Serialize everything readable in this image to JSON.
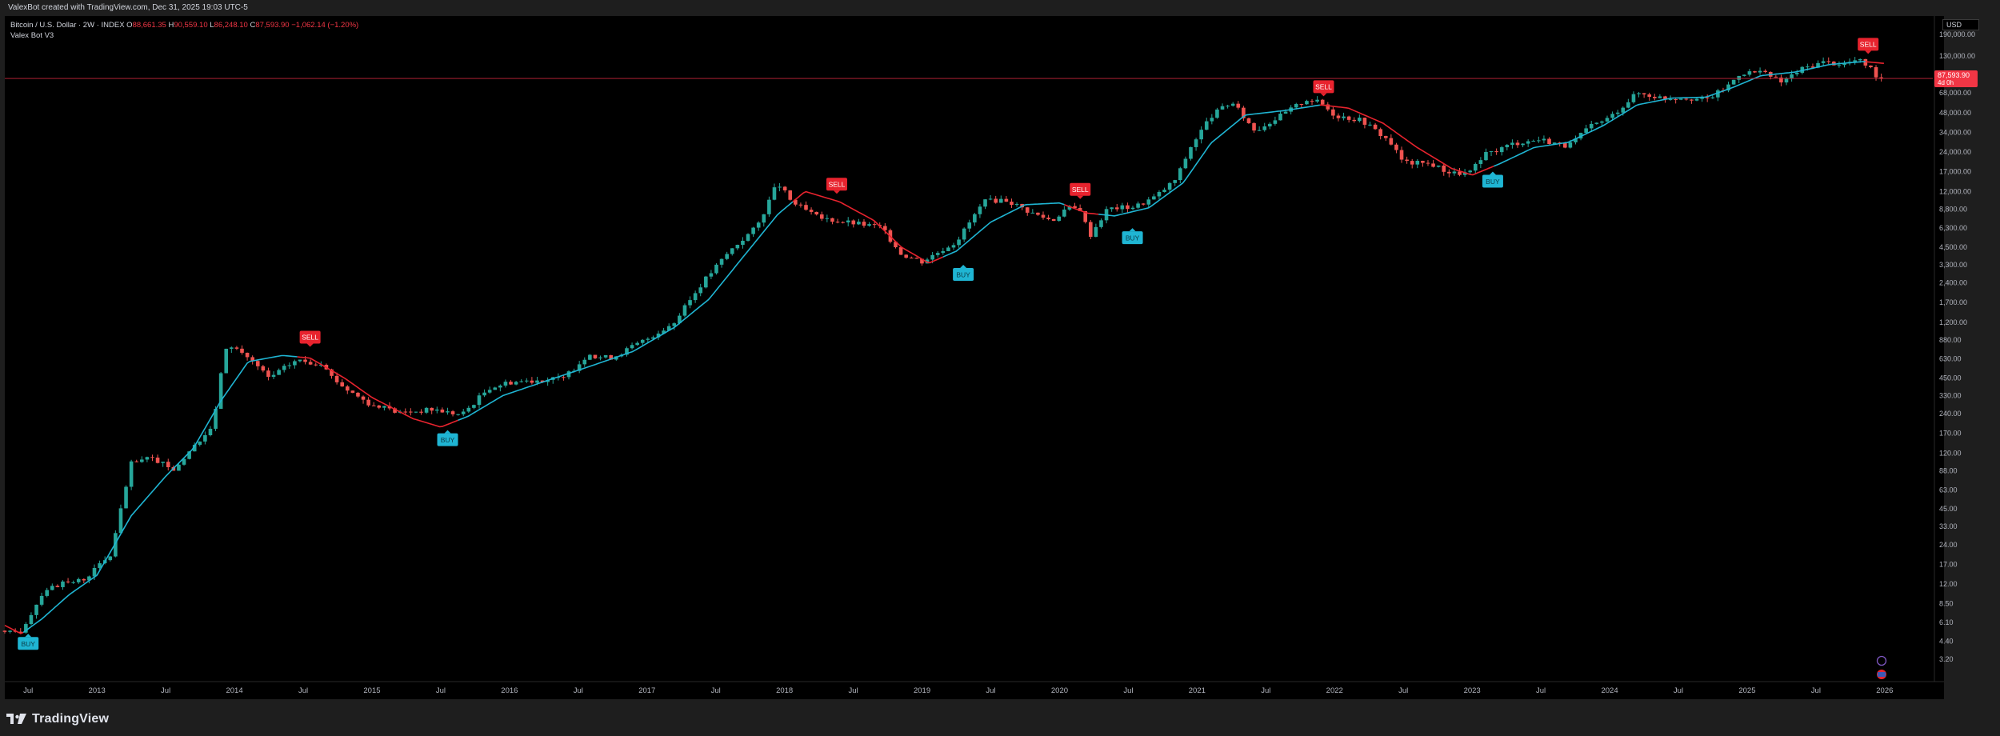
{
  "header": {
    "attribution": "ValexBot created with TradingView.com, Dec 31, 2025 19:03 UTC-5"
  },
  "legend": {
    "symbol": "Bitcoin / U.S. Dollar · 2W · INDEX",
    "open_label": "O",
    "open_value": "88,661.35",
    "high_label": "H",
    "high_value": "90,559.10",
    "low_label": "L",
    "low_value": "86,248.10",
    "close_label": "C",
    "close_value": "87,593.90",
    "change": "−1,062.14 (−1.20%)",
    "indicator": "Valex Bot V3"
  },
  "currency": "USD",
  "footer": {
    "brand": "TradingView"
  },
  "colors": {
    "bull": "#26a69a",
    "bear": "#ef5350",
    "trend_up": "#1fb5d3",
    "trend_down": "#e8232e",
    "buy_label": "#1fb5d3",
    "sell_label": "#e8232e",
    "price_line": "#c7253a"
  },
  "chart_data": {
    "type": "candlestick",
    "interval": "2W",
    "y_scale": "log",
    "ylim": [
      2.6,
      200000
    ],
    "x_range": [
      2012.33,
      2026.35
    ],
    "y_ticks": [
      "3.20",
      "4.40",
      "6.10",
      "8.50",
      "12.00",
      "17.00",
      "24.00",
      "33.00",
      "45.00",
      "63.00",
      "88.00",
      "120.00",
      "170.00",
      "240.00",
      "330.00",
      "450.00",
      "630.00",
      "880.00",
      "1,200.00",
      "1,700.00",
      "2,400.00",
      "3,300.00",
      "4,500.00",
      "6,300.00",
      "8,800.00",
      "12,000.00",
      "17,000.00",
      "24,000.00",
      "34,000.00",
      "48,000.00",
      "68,000.00",
      "130,000.00",
      "190,000.00"
    ],
    "x_ticks": [
      {
        "label": "Jul",
        "t": 2012.5
      },
      {
        "label": "2013",
        "t": 2013.0
      },
      {
        "label": "Jul",
        "t": 2013.5
      },
      {
        "label": "2014",
        "t": 2014.0
      },
      {
        "label": "Jul",
        "t": 2014.5
      },
      {
        "label": "2015",
        "t": 2015.0
      },
      {
        "label": "Jul",
        "t": 2015.5
      },
      {
        "label": "2016",
        "t": 2016.0
      },
      {
        "label": "Jul",
        "t": 2016.5
      },
      {
        "label": "2017",
        "t": 2017.0
      },
      {
        "label": "Jul",
        "t": 2017.5
      },
      {
        "label": "2018",
        "t": 2018.0
      },
      {
        "label": "Jul",
        "t": 2018.5
      },
      {
        "label": "2019",
        "t": 2019.0
      },
      {
        "label": "Jul",
        "t": 2019.5
      },
      {
        "label": "2020",
        "t": 2020.0
      },
      {
        "label": "Jul",
        "t": 2020.5
      },
      {
        "label": "2021",
        "t": 2021.0
      },
      {
        "label": "Jul",
        "t": 2021.5
      },
      {
        "label": "2022",
        "t": 2022.0
      },
      {
        "label": "Jul",
        "t": 2022.5
      },
      {
        "label": "2023",
        "t": 2023.0
      },
      {
        "label": "Jul",
        "t": 2023.5
      },
      {
        "label": "2024",
        "t": 2024.0
      },
      {
        "label": "Jul",
        "t": 2024.5
      },
      {
        "label": "2025",
        "t": 2025.0
      },
      {
        "label": "Jul",
        "t": 2025.5
      },
      {
        "label": "2026",
        "t": 2026.0
      }
    ],
    "price_anchors": [
      [
        2012.33,
        5.0
      ],
      [
        2012.45,
        5.3
      ],
      [
        2012.62,
        11.0
      ],
      [
        2012.75,
        12.0
      ],
      [
        2012.9,
        13.0
      ],
      [
        2013.1,
        20.0
      ],
      [
        2013.25,
        100.0
      ],
      [
        2013.4,
        110.0
      ],
      [
        2013.55,
        90.0
      ],
      [
        2013.7,
        130.0
      ],
      [
        2013.85,
        200.0
      ],
      [
        2013.92,
        700.0
      ],
      [
        2013.98,
        800.0
      ],
      [
        2014.1,
        650.0
      ],
      [
        2014.25,
        450.0
      ],
      [
        2014.45,
        620.0
      ],
      [
        2014.6,
        580.0
      ],
      [
        2014.8,
        380.0
      ],
      [
        2015.0,
        280.0
      ],
      [
        2015.2,
        245.0
      ],
      [
        2015.45,
        260.0
      ],
      [
        2015.65,
        235.0
      ],
      [
        2015.85,
        380.0
      ],
      [
        2016.0,
        420.0
      ],
      [
        2016.4,
        450.0
      ],
      [
        2016.55,
        650.0
      ],
      [
        2016.75,
        650.0
      ],
      [
        2017.0,
        900.0
      ],
      [
        2017.2,
        1200.0
      ],
      [
        2017.4,
        2400.0
      ],
      [
        2017.6,
        4200.0
      ],
      [
        2017.8,
        6500.0
      ],
      [
        2017.95,
        14000.0
      ],
      [
        2018.05,
        10000.0
      ],
      [
        2018.25,
        7500.0
      ],
      [
        2018.45,
        7000.0
      ],
      [
        2018.7,
        6400.0
      ],
      [
        2018.85,
        4000.0
      ],
      [
        2019.0,
        3500.0
      ],
      [
        2019.25,
        5000.0
      ],
      [
        2019.45,
        10000.0
      ],
      [
        2019.6,
        10500.0
      ],
      [
        2019.8,
        8200.0
      ],
      [
        2019.95,
        7200.0
      ],
      [
        2020.05,
        9000.0
      ],
      [
        2020.15,
        8800.0
      ],
      [
        2020.22,
        5500.0
      ],
      [
        2020.35,
        8900.0
      ],
      [
        2020.55,
        9200.0
      ],
      [
        2020.7,
        11000.0
      ],
      [
        2020.85,
        15000.0
      ],
      [
        2020.95,
        26000.0
      ],
      [
        2021.1,
        45000.0
      ],
      [
        2021.25,
        58000.0
      ],
      [
        2021.42,
        35000.0
      ],
      [
        2021.6,
        45000.0
      ],
      [
        2021.8,
        61000.0
      ],
      [
        2021.9,
        57000.0
      ],
      [
        2022.0,
        46000.0
      ],
      [
        2022.2,
        42000.0
      ],
      [
        2022.4,
        29000.0
      ],
      [
        2022.5,
        20000.0
      ],
      [
        2022.7,
        19500.0
      ],
      [
        2022.85,
        16500.0
      ],
      [
        2022.98,
        16600.0
      ],
      [
        2023.1,
        23000.0
      ],
      [
        2023.3,
        28000.0
      ],
      [
        2023.5,
        30000.0
      ],
      [
        2023.7,
        26500.0
      ],
      [
        2023.85,
        37000.0
      ],
      [
        2024.0,
        44000.0
      ],
      [
        2024.2,
        68000.0
      ],
      [
        2024.4,
        62000.0
      ],
      [
        2024.55,
        63000.0
      ],
      [
        2024.7,
        60000.0
      ],
      [
        2024.85,
        75000.0
      ],
      [
        2024.95,
        97000.0
      ],
      [
        2025.1,
        98000.0
      ],
      [
        2025.25,
        82000.0
      ],
      [
        2025.4,
        104000.0
      ],
      [
        2025.55,
        117000.0
      ],
      [
        2025.7,
        113000.0
      ],
      [
        2025.8,
        122000.0
      ],
      [
        2025.88,
        110000.0
      ],
      [
        2025.95,
        90000.0
      ],
      [
        2026.0,
        87593.9
      ]
    ],
    "trend_anchors": [
      [
        2012.33,
        5.8
      ],
      [
        2012.45,
        5.0
      ],
      [
        2012.6,
        6.5
      ],
      [
        2012.8,
        10.0
      ],
      [
        2013.0,
        14.0
      ],
      [
        2013.25,
        40.0
      ],
      [
        2013.5,
        80.0
      ],
      [
        2013.7,
        130.0
      ],
      [
        2013.9,
        300.0
      ],
      [
        2014.1,
        600.0
      ],
      [
        2014.35,
        670.0
      ],
      [
        2014.55,
        640.0
      ],
      [
        2014.8,
        450.0
      ],
      [
        2015.0,
        320.0
      ],
      [
        2015.3,
        220.0
      ],
      [
        2015.5,
        190.0
      ],
      [
        2015.7,
        230.0
      ],
      [
        2015.95,
        330.0
      ],
      [
        2016.3,
        440.0
      ],
      [
        2016.6,
        560.0
      ],
      [
        2016.9,
        720.0
      ],
      [
        2017.2,
        1100.0
      ],
      [
        2017.45,
        1800.0
      ],
      [
        2017.7,
        3800.0
      ],
      [
        2017.95,
        8000.0
      ],
      [
        2018.15,
        12000.0
      ],
      [
        2018.4,
        10000.0
      ],
      [
        2018.65,
        7200.0
      ],
      [
        2018.85,
        4500.0
      ],
      [
        2019.05,
        3400.0
      ],
      [
        2019.25,
        4200.0
      ],
      [
        2019.5,
        7000.0
      ],
      [
        2019.75,
        9500.0
      ],
      [
        2020.0,
        9800.0
      ],
      [
        2020.2,
        8200.0
      ],
      [
        2020.4,
        7800.0
      ],
      [
        2020.65,
        9000.0
      ],
      [
        2020.9,
        14000.0
      ],
      [
        2021.1,
        28000.0
      ],
      [
        2021.35,
        46000.0
      ],
      [
        2021.65,
        50000.0
      ],
      [
        2021.9,
        55000.0
      ],
      [
        2022.1,
        52000.0
      ],
      [
        2022.35,
        40000.0
      ],
      [
        2022.6,
        26000.0
      ],
      [
        2022.85,
        18000.0
      ],
      [
        2023.0,
        16000.0
      ],
      [
        2023.2,
        19500.0
      ],
      [
        2023.45,
        26000.0
      ],
      [
        2023.7,
        28500.0
      ],
      [
        2023.95,
        38000.0
      ],
      [
        2024.2,
        55000.0
      ],
      [
        2024.45,
        62000.0
      ],
      [
        2024.7,
        63000.0
      ],
      [
        2024.9,
        75000.0
      ],
      [
        2025.1,
        92000.0
      ],
      [
        2025.35,
        98000.0
      ],
      [
        2025.6,
        112000.0
      ],
      [
        2025.85,
        118000.0
      ],
      [
        2026.0,
        114000.0
      ]
    ],
    "trend_down_ranges": [
      [
        2012.33,
        2012.45
      ],
      [
        2014.45,
        2015.62
      ],
      [
        2018.05,
        2019.15
      ],
      [
        2020.02,
        2020.28
      ],
      [
        2021.88,
        2023.15
      ],
      [
        2025.85,
        2026.0
      ]
    ],
    "signals": [
      {
        "label": "BUY",
        "t": 2012.5,
        "price": 5.0
      },
      {
        "label": "SELL",
        "t": 2014.55,
        "price": 780.0
      },
      {
        "label": "BUY",
        "t": 2015.55,
        "price": 180.0
      },
      {
        "label": "SELL",
        "t": 2018.38,
        "price": 11500.0
      },
      {
        "label": "BUY",
        "t": 2019.3,
        "price": 3300.0
      },
      {
        "label": "SELL",
        "t": 2020.15,
        "price": 10500.0
      },
      {
        "label": "BUY",
        "t": 2020.53,
        "price": 6300.0
      },
      {
        "label": "SELL",
        "t": 2021.92,
        "price": 64000.0
      },
      {
        "label": "BUY",
        "t": 2023.15,
        "price": 17000.0
      },
      {
        "label": "SELL",
        "t": 2025.88,
        "price": 135000.0
      }
    ],
    "current_price": 87593.9,
    "current_price_label": "87,593.90",
    "countdown": "4d 0h"
  }
}
